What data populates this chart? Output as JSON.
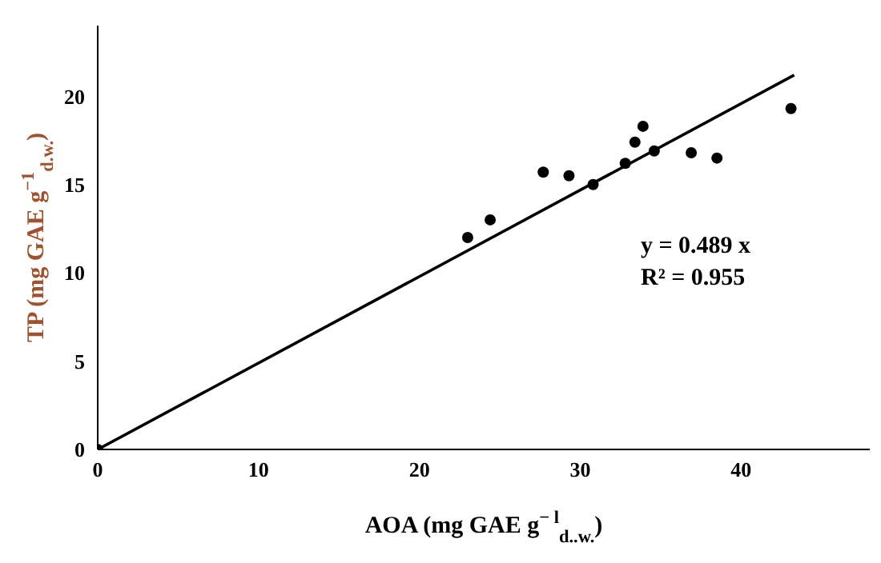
{
  "chart_data": {
    "type": "scatter",
    "xlabel": "AOA (mg GAE g$^{− l}$$_{d..w.}$)",
    "ylabel": "TP (mg GAE g$^{−1}$$_{d.w.}$)",
    "xlim": [
      0,
      48
    ],
    "xticks": [
      0,
      10,
      20,
      30,
      40
    ],
    "ylim": [
      0,
      24
    ],
    "yticks": [
      0,
      5,
      10,
      15,
      20
    ],
    "grid": false,
    "legend": false,
    "marker": "circle",
    "annotations": [
      "y = 0.489 x",
      "R² = 0.955"
    ],
    "series": [
      {
        "color": "#000000",
        "x": [
          0,
          23.0,
          24.4,
          27.7,
          29.3,
          30.8,
          32.8,
          33.4,
          33.9,
          34.6,
          36.9,
          38.5,
          43.1
        ],
        "values": [
          0,
          12.0,
          13.0,
          15.7,
          15.5,
          15.0,
          16.2,
          17.4,
          18.3,
          16.9,
          16.8,
          16.5,
          19.3
        ]
      },
      {
        "type": "line",
        "color": "#000000",
        "marker": "none",
        "x": [
          0,
          43.3
        ],
        "values": [
          0,
          21.2
        ]
      }
    ]
  }
}
